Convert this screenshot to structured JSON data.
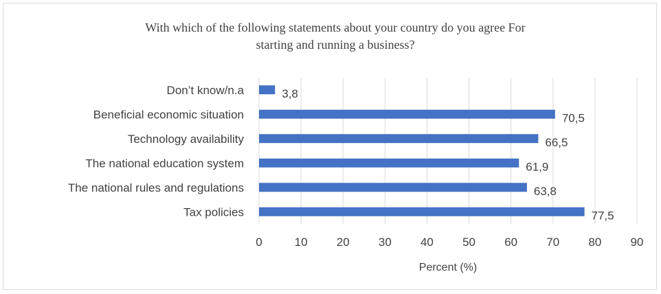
{
  "chart_data": {
    "type": "bar",
    "orientation": "horizontal",
    "title_lines": [
      "With which of the following statements about your country do you agree For",
      "starting and running a business?"
    ],
    "categories": [
      "Don’t know/n.a",
      "Beneficial economic situation",
      "Technology availability",
      "The national education system",
      "The national rules and regulations",
      "Tax policies"
    ],
    "values": [
      3.8,
      70.5,
      66.5,
      61.9,
      63.8,
      77.5
    ],
    "value_labels": [
      "3,8",
      "70,5",
      "66,5",
      "61,9",
      "63,8",
      "77,5"
    ],
    "xlabel": "Percent (%)",
    "ylabel": "",
    "xlim": [
      0,
      90
    ],
    "x_ticks": [
      0,
      10,
      20,
      30,
      40,
      50,
      60,
      70,
      80,
      90
    ],
    "grid": "vertical",
    "legend": "none",
    "bar_color": "#4472c4",
    "grid_color": "#d9d9d9",
    "text_color": "#404040"
  }
}
